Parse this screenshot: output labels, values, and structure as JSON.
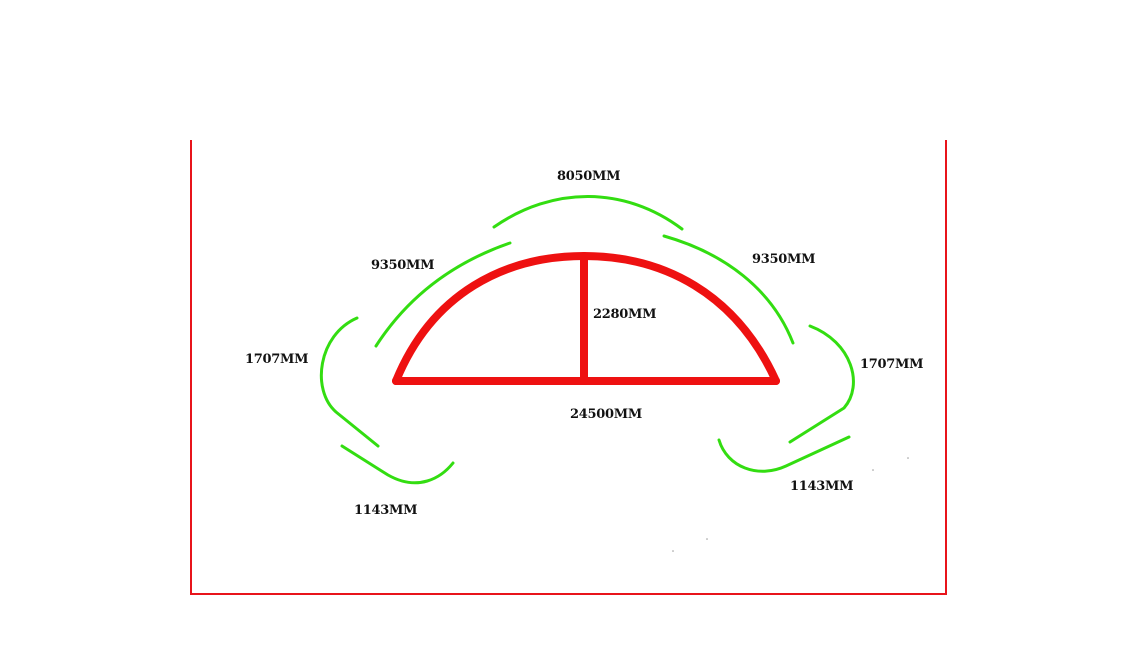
{
  "colors": {
    "frame": "#e8141b",
    "structure": "#ee1111",
    "segments": "#33dd11",
    "text": "#111111"
  },
  "labels": {
    "top_segment": "8050MM",
    "upper_left_segment": "9350MM",
    "upper_right_segment": "9350MM",
    "height": "2280MM",
    "span": "24500MM",
    "left_side_segment": "1707MM",
    "right_side_segment": "1707MM",
    "left_bottom_segment": "1143MM",
    "right_bottom_segment": "1143MM"
  }
}
